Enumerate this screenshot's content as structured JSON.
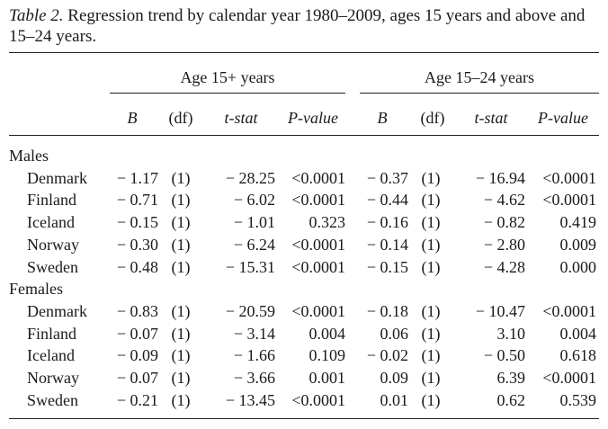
{
  "caption": {
    "label": "Table 2.",
    "text": " Regression trend by calendar year 1980–2009, ages 15 years and above and 15–24 years."
  },
  "groups": [
    "Age 15+ years",
    "Age 15–24 years"
  ],
  "columns": [
    "B",
    "(df)",
    "t-stat",
    "P-value",
    "B",
    "(df)",
    "t-stat",
    "P-value"
  ],
  "sections": [
    {
      "label": "Males",
      "rows": [
        {
          "country": "Denmark",
          "cells": [
            "− 1.17",
            "(1)",
            "− 28.25",
            "<0.0001",
            "− 0.37",
            "(1)",
            "− 16.94",
            "<0.0001"
          ]
        },
        {
          "country": "Finland",
          "cells": [
            "− 0.71",
            "(1)",
            "− 6.02",
            "<0.0001",
            "− 0.44",
            "(1)",
            "− 4.62",
            "<0.0001"
          ]
        },
        {
          "country": "Iceland",
          "cells": [
            "− 0.15",
            "(1)",
            "− 1.01",
            "0.323",
            "− 0.16",
            "(1)",
            "− 0.82",
            "0.419"
          ]
        },
        {
          "country": "Norway",
          "cells": [
            "− 0.30",
            "(1)",
            "− 6.24",
            "<0.0001",
            "− 0.14",
            "(1)",
            "− 2.80",
            "0.009"
          ]
        },
        {
          "country": "Sweden",
          "cells": [
            "− 0.48",
            "(1)",
            "− 15.31",
            "<0.0001",
            "− 0.15",
            "(1)",
            "− 4.28",
            "0.000"
          ]
        }
      ]
    },
    {
      "label": "Females",
      "rows": [
        {
          "country": "Denmark",
          "cells": [
            "− 0.83",
            "(1)",
            "− 20.59",
            "<0.0001",
            "− 0.18",
            "(1)",
            "− 10.47",
            "<0.0001"
          ]
        },
        {
          "country": "Finland",
          "cells": [
            "− 0.07",
            "(1)",
            "− 3.14",
            "0.004",
            "0.06",
            "(1)",
            "3.10",
            "0.004"
          ]
        },
        {
          "country": "Iceland",
          "cells": [
            "− 0.09",
            "(1)",
            "− 1.66",
            "0.109",
            "− 0.02",
            "(1)",
            "− 0.50",
            "0.618"
          ]
        },
        {
          "country": "Norway",
          "cells": [
            "− 0.07",
            "(1)",
            "− 3.66",
            "0.001",
            "0.09",
            "(1)",
            "6.39",
            "<0.0001"
          ]
        },
        {
          "country": "Sweden",
          "cells": [
            "− 0.21",
            "(1)",
            "− 13.45",
            "<0.0001",
            "0.01",
            "(1)",
            "0.62",
            "0.539"
          ]
        }
      ]
    }
  ]
}
